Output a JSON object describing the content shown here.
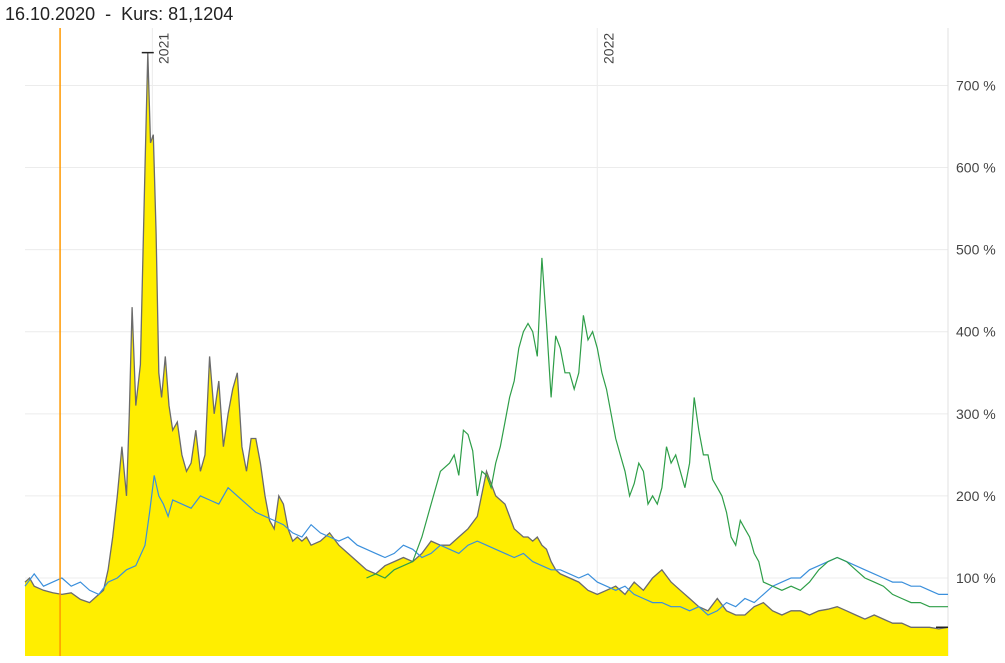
{
  "header": {
    "date": "16.10.2020",
    "separator": "-",
    "kurs_label": "Kurs:",
    "kurs_value": "81,1204"
  },
  "colors": {
    "area_fill": "#ffee00",
    "area_line": "#6b6b6b",
    "series_blue": "#3a8fdc",
    "series_green": "#2e9e48",
    "crosshair": "#ff9900",
    "grid": "#ececec"
  },
  "chart_data": {
    "type": "line",
    "y_tick_labels": [
      "100 %",
      "200 %",
      "300 %",
      "400 %",
      "500 %",
      "600 %",
      "700 %"
    ],
    "y_ticks": [
      100,
      200,
      300,
      400,
      500,
      600,
      700
    ],
    "ylim": [
      5,
      770
    ],
    "x_year_labels": [
      "2021",
      "2022"
    ],
    "x_year_positions": [
      0.138,
      0.62
    ],
    "crosshair_x": 0.038,
    "grid": true,
    "series": [
      {
        "style": "area",
        "x": [
          0,
          0.005,
          0.01,
          0.02,
          0.03,
          0.04,
          0.05,
          0.06,
          0.07,
          0.08,
          0.085,
          0.09,
          0.095,
          0.1,
          0.105,
          0.11,
          0.113,
          0.116,
          0.12,
          0.125,
          0.13,
          0.133,
          0.136,
          0.139,
          0.142,
          0.145,
          0.148,
          0.152,
          0.156,
          0.16,
          0.165,
          0.17,
          0.175,
          0.18,
          0.185,
          0.19,
          0.195,
          0.2,
          0.205,
          0.21,
          0.215,
          0.22,
          0.225,
          0.23,
          0.235,
          0.24,
          0.245,
          0.25,
          0.255,
          0.26,
          0.265,
          0.27,
          0.275,
          0.28,
          0.285,
          0.29,
          0.295,
          0.3,
          0.305,
          0.31,
          0.32,
          0.33,
          0.34,
          0.35,
          0.36,
          0.37,
          0.38,
          0.39,
          0.4,
          0.41,
          0.42,
          0.43,
          0.44,
          0.45,
          0.46,
          0.47,
          0.48,
          0.49,
          0.5,
          0.51,
          0.52,
          0.53,
          0.54,
          0.545,
          0.55,
          0.555,
          0.56,
          0.565,
          0.57,
          0.575,
          0.58,
          0.59,
          0.6,
          0.61,
          0.62,
          0.63,
          0.64,
          0.65,
          0.66,
          0.67,
          0.68,
          0.69,
          0.7,
          0.71,
          0.72,
          0.73,
          0.74,
          0.75,
          0.76,
          0.77,
          0.78,
          0.79,
          0.8,
          0.81,
          0.82,
          0.83,
          0.84,
          0.85,
          0.86,
          0.87,
          0.88,
          0.89,
          0.9,
          0.91,
          0.92,
          0.93,
          0.94,
          0.95,
          0.96,
          0.97,
          0.98,
          0.99,
          1.0
        ],
        "values": [
          95,
          100,
          90,
          85,
          82,
          80,
          82,
          74,
          70,
          80,
          85,
          110,
          150,
          200,
          260,
          200,
          300,
          430,
          310,
          360,
          600,
          740,
          630,
          640,
          520,
          350,
          320,
          370,
          310,
          280,
          290,
          250,
          230,
          240,
          280,
          230,
          250,
          370,
          300,
          340,
          260,
          300,
          330,
          350,
          260,
          230,
          270,
          270,
          240,
          200,
          170,
          160,
          200,
          190,
          160,
          145,
          150,
          145,
          150,
          140,
          145,
          155,
          140,
          130,
          120,
          110,
          105,
          115,
          120,
          125,
          120,
          130,
          145,
          140,
          140,
          150,
          160,
          175,
          230,
          200,
          190,
          160,
          150,
          150,
          145,
          150,
          140,
          135,
          120,
          110,
          105,
          100,
          95,
          85,
          80,
          85,
          90,
          80,
          95,
          85,
          100,
          110,
          95,
          85,
          75,
          65,
          60,
          75,
          60,
          55,
          55,
          65,
          70,
          60,
          55,
          60,
          60,
          55,
          60,
          62,
          65,
          60,
          55,
          50,
          55,
          50,
          45,
          45,
          40,
          40,
          40,
          38,
          40
        ]
      },
      {
        "style": "line",
        "color_key": "series_blue",
        "x": [
          0,
          0.01,
          0.02,
          0.03,
          0.04,
          0.05,
          0.06,
          0.07,
          0.08,
          0.09,
          0.1,
          0.11,
          0.12,
          0.13,
          0.135,
          0.14,
          0.145,
          0.15,
          0.155,
          0.16,
          0.17,
          0.18,
          0.19,
          0.2,
          0.21,
          0.22,
          0.23,
          0.24,
          0.25,
          0.26,
          0.27,
          0.28,
          0.29,
          0.3,
          0.31,
          0.32,
          0.33,
          0.34,
          0.35,
          0.36,
          0.37,
          0.38,
          0.39,
          0.4,
          0.41,
          0.42,
          0.43,
          0.44,
          0.45,
          0.46,
          0.47,
          0.48,
          0.49,
          0.5,
          0.51,
          0.52,
          0.53,
          0.54,
          0.55,
          0.56,
          0.57,
          0.58,
          0.59,
          0.6,
          0.61,
          0.62,
          0.63,
          0.64,
          0.65,
          0.66,
          0.67,
          0.68,
          0.69,
          0.7,
          0.71,
          0.72,
          0.73,
          0.74,
          0.75,
          0.76,
          0.77,
          0.78,
          0.79,
          0.8,
          0.81,
          0.82,
          0.83,
          0.84,
          0.85,
          0.86,
          0.87,
          0.88,
          0.89,
          0.9,
          0.91,
          0.92,
          0.93,
          0.94,
          0.95,
          0.96,
          0.97,
          0.98,
          0.99,
          1.0
        ],
        "values": [
          90,
          105,
          90,
          95,
          100,
          90,
          95,
          85,
          80,
          95,
          100,
          110,
          115,
          140,
          180,
          225,
          200,
          190,
          175,
          195,
          190,
          185,
          200,
          195,
          190,
          210,
          200,
          190,
          180,
          175,
          170,
          165,
          155,
          150,
          165,
          155,
          150,
          145,
          150,
          140,
          135,
          130,
          125,
          130,
          140,
          135,
          125,
          130,
          140,
          135,
          130,
          140,
          145,
          140,
          135,
          130,
          125,
          130,
          120,
          115,
          110,
          110,
          105,
          100,
          105,
          95,
          90,
          85,
          90,
          80,
          75,
          70,
          70,
          65,
          65,
          60,
          65,
          55,
          60,
          70,
          65,
          75,
          70,
          80,
          90,
          95,
          100,
          100,
          110,
          115,
          120,
          125,
          120,
          115,
          110,
          105,
          100,
          95,
          95,
          90,
          90,
          85,
          80,
          80
        ]
      },
      {
        "style": "line",
        "color_key": "series_green",
        "x": [
          0.37,
          0.38,
          0.39,
          0.4,
          0.41,
          0.42,
          0.43,
          0.44,
          0.45,
          0.46,
          0.465,
          0.47,
          0.475,
          0.48,
          0.485,
          0.49,
          0.495,
          0.5,
          0.505,
          0.51,
          0.515,
          0.52,
          0.525,
          0.53,
          0.535,
          0.54,
          0.545,
          0.55,
          0.555,
          0.56,
          0.565,
          0.57,
          0.575,
          0.58,
          0.585,
          0.59,
          0.595,
          0.6,
          0.605,
          0.61,
          0.615,
          0.62,
          0.625,
          0.63,
          0.635,
          0.64,
          0.645,
          0.65,
          0.655,
          0.66,
          0.665,
          0.67,
          0.675,
          0.68,
          0.685,
          0.69,
          0.695,
          0.7,
          0.705,
          0.71,
          0.715,
          0.72,
          0.725,
          0.73,
          0.735,
          0.74,
          0.745,
          0.75,
          0.755,
          0.76,
          0.765,
          0.77,
          0.775,
          0.78,
          0.785,
          0.79,
          0.795,
          0.8,
          0.81,
          0.82,
          0.83,
          0.84,
          0.85,
          0.86,
          0.87,
          0.88,
          0.89,
          0.9,
          0.91,
          0.92,
          0.93,
          0.94,
          0.95,
          0.96,
          0.97,
          0.98,
          0.99,
          1.0
        ],
        "values": [
          100,
          105,
          100,
          110,
          115,
          120,
          150,
          190,
          230,
          240,
          250,
          225,
          280,
          275,
          255,
          200,
          230,
          225,
          210,
          240,
          260,
          290,
          320,
          340,
          380,
          400,
          410,
          400,
          370,
          490,
          410,
          320,
          395,
          380,
          350,
          350,
          330,
          350,
          420,
          390,
          400,
          380,
          350,
          330,
          300,
          270,
          250,
          230,
          200,
          215,
          240,
          230,
          190,
          200,
          190,
          210,
          260,
          240,
          250,
          230,
          210,
          240,
          320,
          280,
          250,
          250,
          220,
          210,
          200,
          180,
          150,
          140,
          170,
          160,
          150,
          130,
          120,
          95,
          90,
          85,
          90,
          85,
          95,
          110,
          120,
          125,
          120,
          110,
          100,
          95,
          90,
          80,
          75,
          70,
          70,
          65,
          65,
          65
        ]
      }
    ]
  }
}
